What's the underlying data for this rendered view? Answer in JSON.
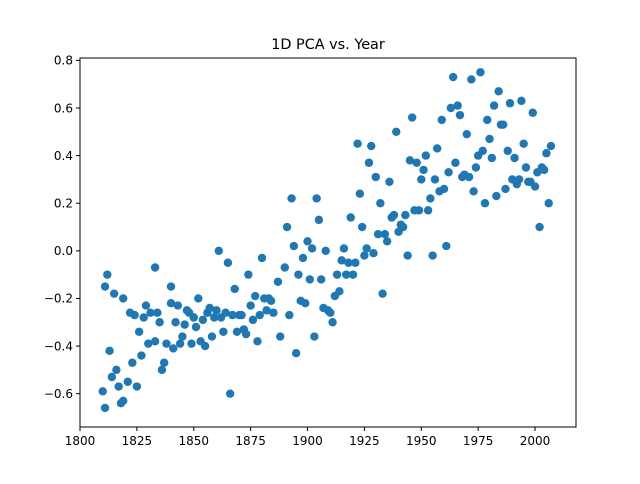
{
  "chart_data": {
    "type": "scatter",
    "title": "1D PCA vs. Year",
    "xlabel": "",
    "ylabel": "",
    "xlim": [
      1800,
      2018
    ],
    "ylim": [
      -0.74,
      0.81
    ],
    "xticks": [
      1800,
      1825,
      1850,
      1875,
      1900,
      1925,
      1950,
      1975,
      2000
    ],
    "yticks": [
      -0.6,
      -0.4,
      -0.2,
      0.0,
      0.2,
      0.4,
      0.6,
      0.8
    ],
    "xtick_labels": [
      "1800",
      "1825",
      "1850",
      "1875",
      "1900",
      "1925",
      "1950",
      "1975",
      "2000"
    ],
    "ytick_labels": [
      "−0.6",
      "−0.4",
      "−0.2",
      "0.0",
      "0.2",
      "0.4",
      "0.6",
      "0.8"
    ],
    "grid": false,
    "marker_color": "#1f77b4",
    "series": [
      {
        "points": [
          [
            1810,
            -0.59
          ],
          [
            1811,
            -0.15
          ],
          [
            1811,
            -0.66
          ],
          [
            1812,
            -0.1
          ],
          [
            1813,
            -0.42
          ],
          [
            1814,
            -0.53
          ],
          [
            1815,
            -0.18
          ],
          [
            1816,
            -0.5
          ],
          [
            1817,
            -0.57
          ],
          [
            1818,
            -0.64
          ],
          [
            1819,
            -0.2
          ],
          [
            1819,
            -0.63
          ],
          [
            1821,
            -0.55
          ],
          [
            1822,
            -0.26
          ],
          [
            1823,
            -0.47
          ],
          [
            1824,
            -0.27
          ],
          [
            1825,
            -0.57
          ],
          [
            1826,
            -0.34
          ],
          [
            1827,
            -0.44
          ],
          [
            1828,
            -0.28
          ],
          [
            1829,
            -0.23
          ],
          [
            1830,
            -0.39
          ],
          [
            1831,
            -0.26
          ],
          [
            1833,
            -0.07
          ],
          [
            1833,
            -0.38
          ],
          [
            1834,
            -0.26
          ],
          [
            1835,
            -0.3
          ],
          [
            1836,
            -0.5
          ],
          [
            1837,
            -0.47
          ],
          [
            1838,
            -0.39
          ],
          [
            1840,
            -0.15
          ],
          [
            1840,
            -0.22
          ],
          [
            1841,
            -0.41
          ],
          [
            1842,
            -0.3
          ],
          [
            1843,
            -0.23
          ],
          [
            1844,
            -0.39
          ],
          [
            1845,
            -0.36
          ],
          [
            1846,
            -0.31
          ],
          [
            1847,
            -0.25
          ],
          [
            1848,
            -0.26
          ],
          [
            1849,
            -0.39
          ],
          [
            1850,
            -0.28
          ],
          [
            1851,
            -0.32
          ],
          [
            1852,
            -0.2
          ],
          [
            1853,
            -0.38
          ],
          [
            1854,
            -0.29
          ],
          [
            1855,
            -0.4
          ],
          [
            1856,
            -0.26
          ],
          [
            1857,
            -0.24
          ],
          [
            1858,
            -0.36
          ],
          [
            1859,
            -0.28
          ],
          [
            1860,
            -0.25
          ],
          [
            1861,
            0.0
          ],
          [
            1862,
            -0.28
          ],
          [
            1863,
            -0.34
          ],
          [
            1864,
            -0.26
          ],
          [
            1865,
            -0.05
          ],
          [
            1866,
            -0.6
          ],
          [
            1867,
            -0.27
          ],
          [
            1868,
            -0.16
          ],
          [
            1869,
            -0.34
          ],
          [
            1870,
            -0.27
          ],
          [
            1871,
            -0.27
          ],
          [
            1872,
            -0.33
          ],
          [
            1873,
            -0.35
          ],
          [
            1874,
            -0.1
          ],
          [
            1875,
            -0.23
          ],
          [
            1876,
            -0.29
          ],
          [
            1877,
            -0.19
          ],
          [
            1878,
            -0.38
          ],
          [
            1879,
            -0.27
          ],
          [
            1880,
            -0.03
          ],
          [
            1881,
            -0.2
          ],
          [
            1882,
            -0.25
          ],
          [
            1883,
            -0.2
          ],
          [
            1884,
            -0.21
          ],
          [
            1885,
            -0.26
          ],
          [
            1887,
            -0.13
          ],
          [
            1888,
            -0.36
          ],
          [
            1890,
            -0.07
          ],
          [
            1891,
            0.1
          ],
          [
            1892,
            -0.27
          ],
          [
            1893,
            0.22
          ],
          [
            1894,
            0.02
          ],
          [
            1895,
            -0.43
          ],
          [
            1896,
            -0.1
          ],
          [
            1897,
            -0.21
          ],
          [
            1898,
            -0.03
          ],
          [
            1899,
            -0.22
          ],
          [
            1900,
            0.04
          ],
          [
            1901,
            -0.12
          ],
          [
            1902,
            0.01
          ],
          [
            1903,
            -0.36
          ],
          [
            1904,
            0.22
          ],
          [
            1905,
            0.13
          ],
          [
            1906,
            -0.12
          ],
          [
            1907,
            -0.24
          ],
          [
            1908,
            0.0
          ],
          [
            1909,
            -0.25
          ],
          [
            1910,
            -0.26
          ],
          [
            1911,
            -0.3
          ],
          [
            1912,
            -0.19
          ],
          [
            1913,
            -0.1
          ],
          [
            1914,
            -0.17
          ],
          [
            1915,
            -0.04
          ],
          [
            1916,
            0.01
          ],
          [
            1917,
            -0.1
          ],
          [
            1918,
            -0.05
          ],
          [
            1919,
            0.14
          ],
          [
            1920,
            -0.1
          ],
          [
            1921,
            -0.05
          ],
          [
            1922,
            0.45
          ],
          [
            1923,
            0.24
          ],
          [
            1924,
            0.1
          ],
          [
            1925,
            -0.02
          ],
          [
            1926,
            0.01
          ],
          [
            1927,
            0.37
          ],
          [
            1928,
            0.44
          ],
          [
            1929,
            -0.01
          ],
          [
            1930,
            0.31
          ],
          [
            1931,
            0.07
          ],
          [
            1932,
            0.2
          ],
          [
            1933,
            -0.18
          ],
          [
            1934,
            0.07
          ],
          [
            1935,
            0.04
          ],
          [
            1936,
            0.29
          ],
          [
            1937,
            0.14
          ],
          [
            1938,
            0.15
          ],
          [
            1939,
            0.5
          ],
          [
            1940,
            0.08
          ],
          [
            1941,
            0.11
          ],
          [
            1942,
            0.1
          ],
          [
            1943,
            0.15
          ],
          [
            1944,
            -0.02
          ],
          [
            1945,
            0.38
          ],
          [
            1946,
            0.56
          ],
          [
            1947,
            0.17
          ],
          [
            1948,
            0.37
          ],
          [
            1949,
            0.17
          ],
          [
            1950,
            0.3
          ],
          [
            1951,
            0.34
          ],
          [
            1952,
            0.4
          ],
          [
            1953,
            0.17
          ],
          [
            1954,
            0.22
          ],
          [
            1955,
            -0.02
          ],
          [
            1956,
            0.3
          ],
          [
            1957,
            0.43
          ],
          [
            1958,
            0.25
          ],
          [
            1959,
            0.55
          ],
          [
            1960,
            0.26
          ],
          [
            1961,
            0.02
          ],
          [
            1962,
            0.33
          ],
          [
            1963,
            0.6
          ],
          [
            1964,
            0.73
          ],
          [
            1965,
            0.37
          ],
          [
            1966,
            0.61
          ],
          [
            1967,
            0.57
          ],
          [
            1968,
            0.31
          ],
          [
            1969,
            0.32
          ],
          [
            1970,
            0.49
          ],
          [
            1971,
            0.31
          ],
          [
            1972,
            0.72
          ],
          [
            1973,
            0.25
          ],
          [
            1974,
            0.35
          ],
          [
            1975,
            0.4
          ],
          [
            1976,
            0.75
          ],
          [
            1977,
            0.42
          ],
          [
            1978,
            0.2
          ],
          [
            1979,
            0.55
          ],
          [
            1980,
            0.47
          ],
          [
            1981,
            0.39
          ],
          [
            1982,
            0.61
          ],
          [
            1983,
            0.23
          ],
          [
            1984,
            0.67
          ],
          [
            1985,
            0.53
          ],
          [
            1986,
            0.53
          ],
          [
            1987,
            0.26
          ],
          [
            1988,
            0.42
          ],
          [
            1989,
            0.62
          ],
          [
            1990,
            0.3
          ],
          [
            1991,
            0.39
          ],
          [
            1992,
            0.28
          ],
          [
            1993,
            0.3
          ],
          [
            1994,
            0.63
          ],
          [
            1995,
            0.45
          ],
          [
            1996,
            0.35
          ],
          [
            1997,
            0.29
          ],
          [
            1998,
            0.29
          ],
          [
            1999,
            0.58
          ],
          [
            2000,
            0.27
          ],
          [
            2001,
            0.33
          ],
          [
            2002,
            0.1
          ],
          [
            2003,
            0.35
          ],
          [
            2004,
            0.34
          ],
          [
            2005,
            0.41
          ],
          [
            2006,
            0.2
          ],
          [
            2007,
            0.44
          ]
        ]
      }
    ]
  }
}
